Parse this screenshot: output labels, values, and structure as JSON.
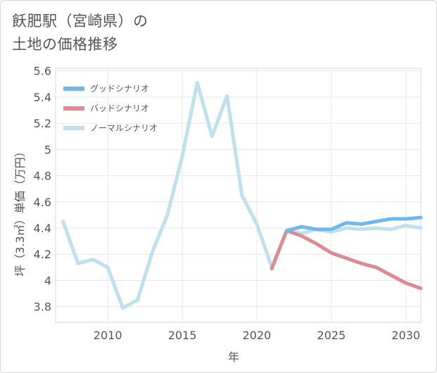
{
  "title": {
    "line1": "飫肥駅（宮崎県）の",
    "line2": "土地の価格推移"
  },
  "chart_data": {
    "type": "line",
    "xlabel": "年",
    "ylabel": "坪（3.3㎡）単価（万円）",
    "xlim": [
      2006.5,
      2031
    ],
    "ylim": [
      3.68,
      5.62
    ],
    "x_ticks": [
      2010,
      2015,
      2020,
      2025,
      2030
    ],
    "y_ticks": [
      3.8,
      4,
      4.2,
      4.4,
      4.6,
      4.8,
      5,
      5.2,
      5.4,
      5.6
    ],
    "y_tick_labels": [
      "3.8",
      "4",
      "4.2",
      "4.4",
      "4.6",
      "4.8",
      "5",
      "5.2",
      "5.4",
      "5.6"
    ],
    "grid": true,
    "legend_position": "top-left",
    "series": [
      {
        "name": "グッドシナリオ",
        "color": "#6db8ee",
        "x": [
          2022,
          2023,
          2024,
          2025,
          2026,
          2027,
          2028,
          2029,
          2030,
          2031
        ],
        "values": [
          4.38,
          4.41,
          4.39,
          4.39,
          4.44,
          4.43,
          4.45,
          4.47,
          4.47,
          4.48
        ]
      },
      {
        "name": "バッドシナリオ",
        "color": "#de8a92",
        "x": [
          2021,
          2022,
          2023,
          2024,
          2025,
          2026,
          2027,
          2028,
          2029,
          2030,
          2031
        ],
        "values": [
          4.09,
          4.38,
          4.34,
          4.28,
          4.21,
          4.17,
          4.13,
          4.1,
          4.04,
          3.98,
          3.94
        ]
      },
      {
        "name": "ノーマルシナリオ",
        "color": "#bfe0ee",
        "x": [
          2007,
          2008,
          2009,
          2010,
          2011,
          2012,
          2013,
          2014,
          2015,
          2016,
          2017,
          2018,
          2019,
          2020,
          2021,
          2022,
          2023,
          2024,
          2025,
          2026,
          2027,
          2028,
          2029,
          2030,
          2031
        ],
        "values": [
          4.45,
          4.13,
          4.16,
          4.1,
          3.79,
          3.85,
          4.22,
          4.5,
          4.95,
          5.51,
          5.1,
          5.41,
          4.65,
          4.43,
          4.1,
          4.38,
          4.36,
          4.39,
          4.37,
          4.4,
          4.39,
          4.4,
          4.39,
          4.42,
          4.4
        ]
      }
    ]
  }
}
